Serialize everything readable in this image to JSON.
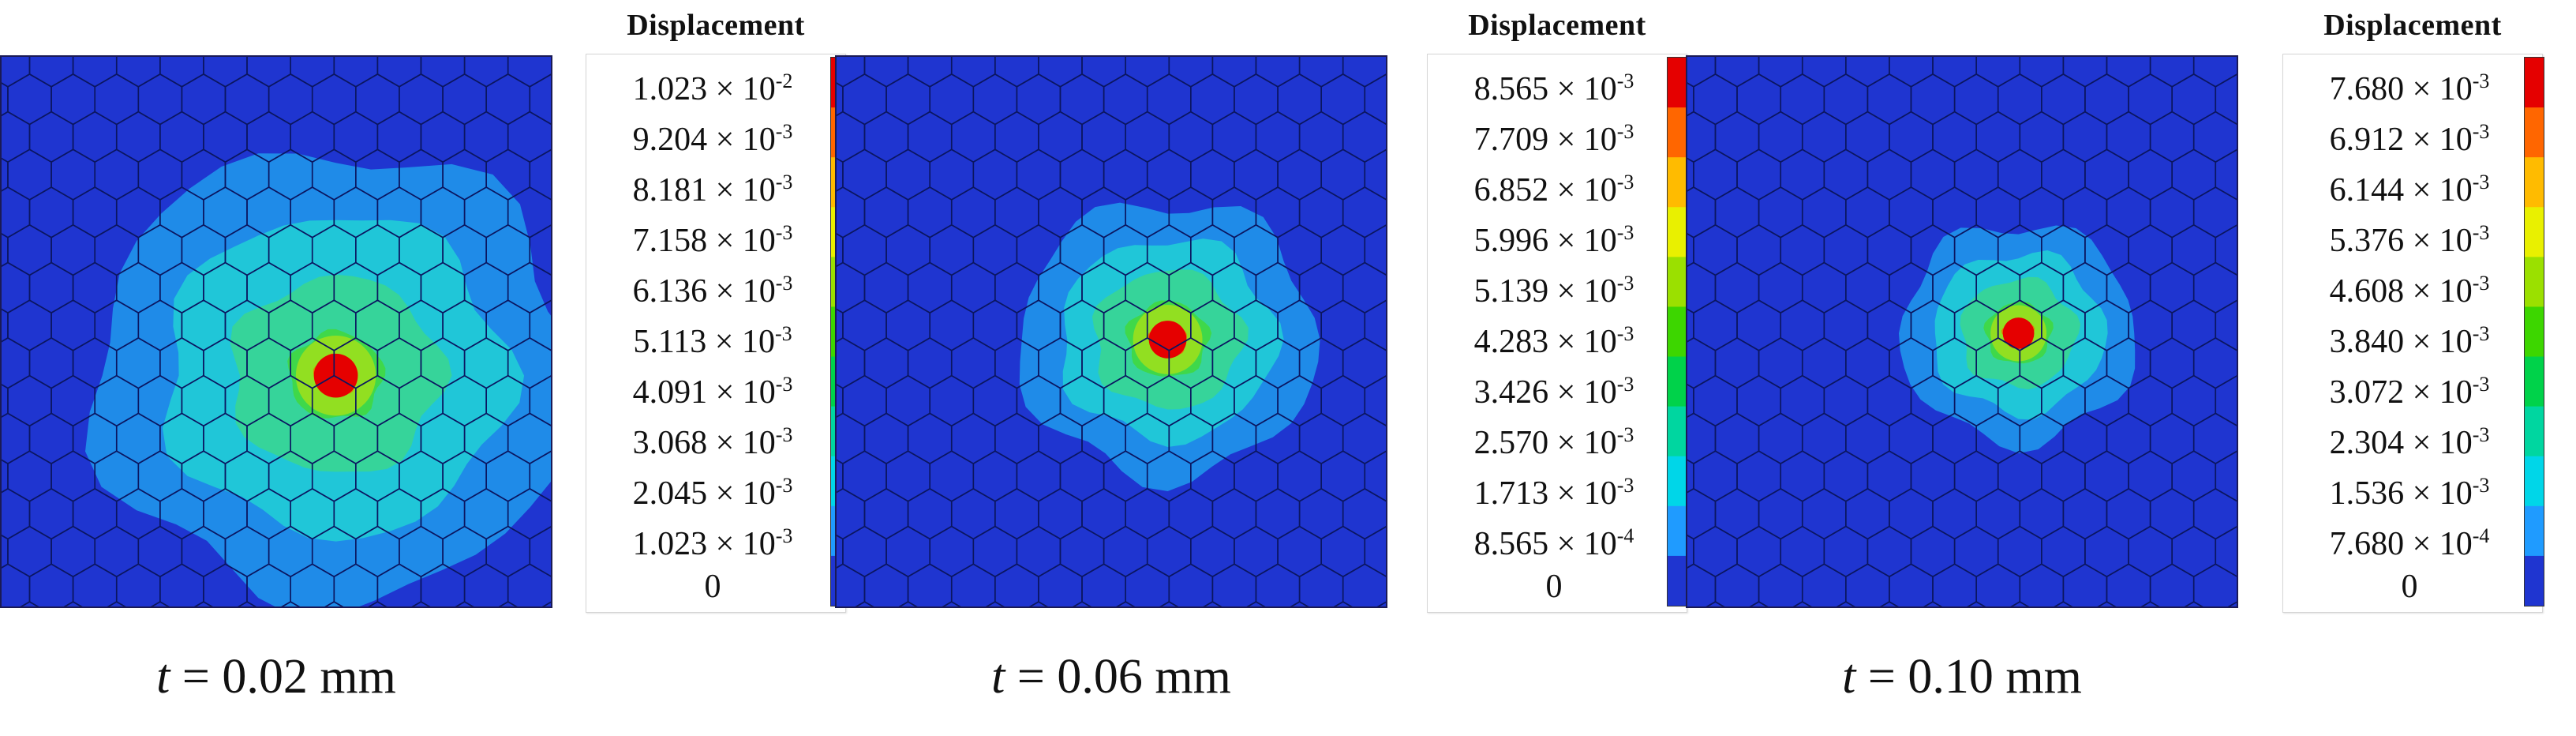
{
  "panels": [
    {
      "legend_title": "Displacement",
      "legend_values": [
        "1.023 × 10-2",
        "9.204 × 10-3",
        "8.181 × 10-3",
        "7.158 × 10-3",
        "6.136 × 10-3",
        "5.113 × 10-3",
        "4.091 × 10-3",
        "3.068 × 10-3",
        "2.045 × 10-3",
        "1.023 × 10-3",
        "0"
      ],
      "caption_var": "t",
      "caption_value": " = 0.02 mm",
      "spread_level": "large"
    },
    {
      "legend_title": "Displacement",
      "legend_values": [
        "8.565 × 10-3",
        "7.709 × 10-3",
        "6.852 × 10-3",
        "5.996 × 10-3",
        "5.139 × 10-3",
        "4.283 × 10-3",
        "3.426 × 10-3",
        "2.570 × 10-3",
        "1.713 × 10-3",
        "8.565 × 10-4",
        "0"
      ],
      "caption_var": "t",
      "caption_value": " = 0.06 mm",
      "spread_level": "medium"
    },
    {
      "legend_title": "Displacement",
      "legend_values": [
        "7.680 × 10-3",
        "6.912 × 10-3",
        "6.144 × 10-3",
        "5.376 × 10-3",
        "4.608 × 10-3",
        "3.840 × 10-3",
        "3.072 × 10-3",
        "2.304 × 10-3",
        "1.536 × 10-3",
        "7.680 × 10-4",
        "0"
      ],
      "caption_var": "t",
      "caption_value": " = 0.10 mm",
      "spread_level": "small"
    }
  ],
  "colors": {
    "background": "#1f35d0",
    "color_scale": [
      "#e50000",
      "#ff6600",
      "#ffbb00",
      "#e9f000",
      "#9be000",
      "#3dd600",
      "#00d24a",
      "#00d6a0",
      "#00d6e8",
      "#1f9bff",
      "#1f35d0"
    ]
  }
}
